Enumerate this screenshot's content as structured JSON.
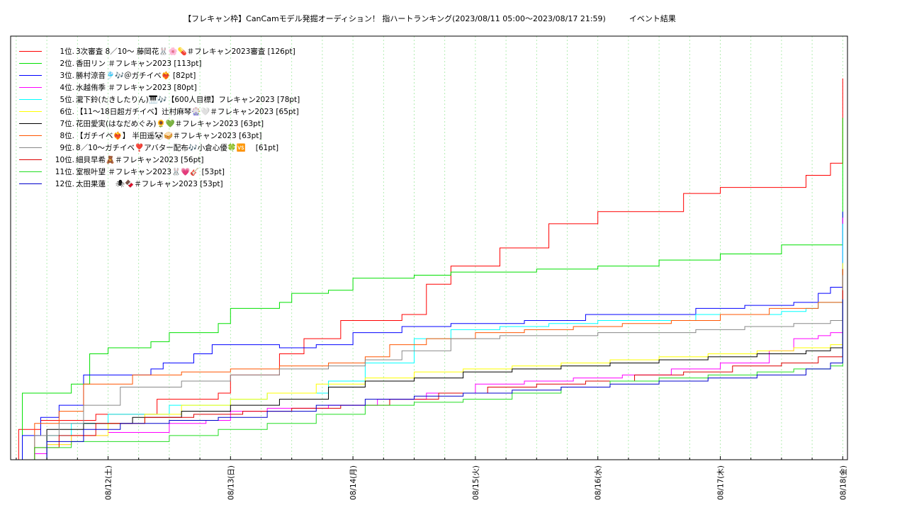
{
  "chart_data": {
    "type": "line",
    "title": "【フレキャン枠】CanCamモデル発掘オーディション！ 指ハートランキング(2023/08/11 05:00〜2023/08/17 21:59)　　　イベント結果",
    "xlabel": "",
    "ylabel": "",
    "x_tick_labels": [
      "08/12(土)",
      "08/13(日)",
      "08/14(月)",
      "08/15(火)",
      "08/16(水)",
      "08/17(木)",
      "08/18(金)"
    ],
    "x_range_days": [
      -0.8,
      6.0
    ],
    "ylim": [
      0,
      140
    ],
    "grid": true,
    "legend_position": "top-left",
    "series": [
      {
        "rank": "1位.",
        "name": "3次審査 8／10〜 藤岡花🐰🌸💊＃フレキャン2023審査 [126pt]",
        "color": "#ff0000",
        "points": [
          [
            -0.8,
            0
          ],
          [
            -0.73,
            10
          ],
          [
            -0.55,
            13
          ],
          [
            -0.3,
            13
          ],
          [
            -0.1,
            15
          ],
          [
            0.1,
            15
          ],
          [
            0.4,
            20
          ],
          [
            0.6,
            20
          ],
          [
            0.9,
            22
          ],
          [
            1.0,
            28
          ],
          [
            1.1,
            28
          ],
          [
            1.35,
            28
          ],
          [
            1.4,
            35
          ],
          [
            1.5,
            35
          ],
          [
            1.6,
            40
          ],
          [
            1.8,
            40
          ],
          [
            1.9,
            46
          ],
          [
            2.1,
            46
          ],
          [
            2.4,
            48
          ],
          [
            2.6,
            58
          ],
          [
            2.8,
            64
          ],
          [
            3.2,
            70
          ],
          [
            3.6,
            78
          ],
          [
            4.0,
            82
          ],
          [
            4.4,
            82
          ],
          [
            4.7,
            88
          ],
          [
            4.9,
            88
          ],
          [
            5.0,
            90
          ],
          [
            5.3,
            90
          ],
          [
            5.7,
            94
          ],
          [
            5.9,
            98
          ],
          [
            6.0,
            105
          ],
          [
            6.0,
            126
          ]
        ]
      },
      {
        "rank": "2位.",
        "name": "香田リン ＃フレキャン2023 [113pt]",
        "color": "#00e000",
        "points": [
          [
            -0.8,
            0
          ],
          [
            -0.7,
            22
          ],
          [
            -0.5,
            22
          ],
          [
            -0.3,
            25
          ],
          [
            -0.15,
            35
          ],
          [
            0,
            37
          ],
          [
            0.35,
            39
          ],
          [
            0.5,
            42
          ],
          [
            0.9,
            45
          ],
          [
            1.0,
            50
          ],
          [
            1.4,
            52
          ],
          [
            1.5,
            55
          ],
          [
            1.8,
            56
          ],
          [
            2.0,
            60
          ],
          [
            2.5,
            61
          ],
          [
            2.8,
            62
          ],
          [
            3.5,
            63
          ],
          [
            4.0,
            64
          ],
          [
            4.5,
            66
          ],
          [
            5.0,
            68
          ],
          [
            5.5,
            71
          ],
          [
            5.9,
            71
          ],
          [
            6.0,
            80
          ],
          [
            6.0,
            113
          ]
        ]
      },
      {
        "rank": "3位.",
        "name": "勝村涼音🎐🎶＠ガチイベ❤️‍🔥 [82pt]",
        "color": "#0000ff",
        "points": [
          [
            -0.8,
            0
          ],
          [
            -0.7,
            8
          ],
          [
            -0.55,
            14
          ],
          [
            -0.4,
            18
          ],
          [
            -0.2,
            28
          ],
          [
            0.2,
            28
          ],
          [
            0.35,
            30
          ],
          [
            0.45,
            32
          ],
          [
            0.7,
            35
          ],
          [
            0.85,
            38
          ],
          [
            1.2,
            38
          ],
          [
            1.4,
            37
          ],
          [
            1.7,
            38
          ],
          [
            2.0,
            42
          ],
          [
            2.4,
            44
          ],
          [
            2.8,
            45
          ],
          [
            3.4,
            46
          ],
          [
            3.9,
            48
          ],
          [
            4.4,
            48
          ],
          [
            4.8,
            50
          ],
          [
            5.2,
            51
          ],
          [
            5.6,
            52
          ],
          [
            5.8,
            55
          ],
          [
            5.9,
            57
          ],
          [
            6.0,
            60
          ],
          [
            6.0,
            82
          ]
        ]
      },
      {
        "rank": "4位.",
        "name": "水越侑季 ＃フレキャン2023 [80pt]",
        "color": "#ff00ff",
        "points": [
          [
            -0.8,
            0
          ],
          [
            -0.6,
            2
          ],
          [
            -0.5,
            5
          ],
          [
            -0.3,
            8
          ],
          [
            0,
            9
          ],
          [
            0.5,
            12
          ],
          [
            0.8,
            13
          ],
          [
            1.0,
            16
          ],
          [
            1.3,
            17
          ],
          [
            1.8,
            18
          ],
          [
            2.2,
            20
          ],
          [
            2.6,
            22
          ],
          [
            3.0,
            25
          ],
          [
            3.4,
            26
          ],
          [
            3.8,
            27
          ],
          [
            4.2,
            28
          ],
          [
            4.6,
            30
          ],
          [
            5.0,
            32
          ],
          [
            5.4,
            36
          ],
          [
            5.6,
            40
          ],
          [
            5.8,
            41
          ],
          [
            5.9,
            42
          ],
          [
            6.0,
            60
          ],
          [
            6.0,
            80
          ]
        ]
      },
      {
        "rank": "5位.",
        "name": "瀧下鈴(たきしたりん)🎹🎶【600人目標】フレキャン2023 [78pt]",
        "color": "#00ffff",
        "points": [
          [
            -0.8,
            0
          ],
          [
            -0.5,
            8
          ],
          [
            -0.3,
            12
          ],
          [
            0,
            15
          ],
          [
            0.5,
            18
          ],
          [
            1.0,
            20
          ],
          [
            1.3,
            22
          ],
          [
            1.8,
            26
          ],
          [
            2.1,
            32
          ],
          [
            2.5,
            40
          ],
          [
            2.8,
            43
          ],
          [
            3.2,
            44
          ],
          [
            3.6,
            45
          ],
          [
            4.0,
            46
          ],
          [
            4.4,
            46
          ],
          [
            4.8,
            48
          ],
          [
            5.2,
            48
          ],
          [
            5.5,
            49
          ],
          [
            5.7,
            50
          ],
          [
            5.8,
            52
          ],
          [
            6.0,
            55
          ],
          [
            6.0,
            78
          ]
        ]
      },
      {
        "rank": "6位.",
        "name": "【11〜18日超ガチイベ】辻村麻琴🎡🤍＃フレキャン2023 [65pt]",
        "color": "#ffff00",
        "points": [
          [
            -0.8,
            0
          ],
          [
            -0.5,
            5
          ],
          [
            -0.3,
            8
          ],
          [
            0,
            12
          ],
          [
            0.3,
            15
          ],
          [
            0.6,
            18
          ],
          [
            1.0,
            20
          ],
          [
            1.3,
            22
          ],
          [
            1.7,
            25
          ],
          [
            2.1,
            27
          ],
          [
            2.5,
            29
          ],
          [
            2.9,
            30
          ],
          [
            3.3,
            31
          ],
          [
            3.7,
            32
          ],
          [
            4.1,
            33
          ],
          [
            4.5,
            34
          ],
          [
            4.9,
            35
          ],
          [
            5.3,
            36
          ],
          [
            5.6,
            37
          ],
          [
            5.9,
            38
          ],
          [
            6.0,
            40
          ],
          [
            6.0,
            65
          ]
        ]
      },
      {
        "rank": "7位.",
        "name": "花田愛実(はなだめぐみ)🌻💚＃フレキャン2023 [63pt]",
        "color": "#000000",
        "points": [
          [
            -0.8,
            0
          ],
          [
            -0.5,
            10
          ],
          [
            -0.2,
            12
          ],
          [
            0.2,
            14
          ],
          [
            0.6,
            16
          ],
          [
            1.0,
            18
          ],
          [
            1.4,
            20
          ],
          [
            1.8,
            24
          ],
          [
            2.1,
            26
          ],
          [
            2.5,
            27
          ],
          [
            2.9,
            29
          ],
          [
            3.3,
            30
          ],
          [
            3.7,
            31
          ],
          [
            4.1,
            32
          ],
          [
            4.5,
            33
          ],
          [
            4.9,
            34
          ],
          [
            5.3,
            35
          ],
          [
            5.7,
            36
          ],
          [
            5.9,
            37
          ],
          [
            6.0,
            39
          ],
          [
            6.0,
            63
          ]
        ]
      },
      {
        "rank": "8位.",
        "name": "【ガチイベ❤️‍🔥】 半田遥🐼🥪＃フレキャン2023 [63pt]",
        "color": "#ff5500",
        "points": [
          [
            -0.8,
            0
          ],
          [
            -0.6,
            12
          ],
          [
            -0.4,
            16
          ],
          [
            -0.2,
            25
          ],
          [
            0.2,
            28
          ],
          [
            0.6,
            29
          ],
          [
            1.0,
            30
          ],
          [
            1.4,
            31
          ],
          [
            1.8,
            32
          ],
          [
            2.1,
            34
          ],
          [
            2.3,
            38
          ],
          [
            2.6,
            40
          ],
          [
            3.0,
            42
          ],
          [
            3.4,
            43
          ],
          [
            3.8,
            44
          ],
          [
            4.2,
            45
          ],
          [
            4.6,
            46
          ],
          [
            5.0,
            48
          ],
          [
            5.4,
            50
          ],
          [
            5.8,
            52
          ],
          [
            6.0,
            53
          ],
          [
            6.0,
            63
          ]
        ]
      },
      {
        "rank": "9位.",
        "name": "8／10〜ガチイベ❣️アバター配布🎶小倉心優🍀🆚　 [61pt]",
        "color": "#888888",
        "points": [
          [
            -0.8,
            0
          ],
          [
            -0.6,
            8
          ],
          [
            -0.4,
            12
          ],
          [
            -0.2,
            18
          ],
          [
            0.1,
            24
          ],
          [
            0.6,
            26
          ],
          [
            1.0,
            28
          ],
          [
            1.4,
            30
          ],
          [
            1.8,
            31
          ],
          [
            2.1,
            33
          ],
          [
            2.4,
            36
          ],
          [
            2.8,
            40
          ],
          [
            3.2,
            41
          ],
          [
            3.6,
            41
          ],
          [
            4.0,
            42
          ],
          [
            4.4,
            42
          ],
          [
            4.8,
            43
          ],
          [
            5.2,
            44
          ],
          [
            5.6,
            45
          ],
          [
            5.9,
            46
          ],
          [
            6.0,
            47
          ],
          [
            6.0,
            61
          ]
        ]
      },
      {
        "rank": "10位.",
        "name": "細貝早希🧸＃フレキャン2023 [56pt]",
        "color": "#dd0000",
        "points": [
          [
            -0.8,
            0
          ],
          [
            -0.6,
            4
          ],
          [
            -0.4,
            8
          ],
          [
            -0.1,
            12
          ],
          [
            0.3,
            14
          ],
          [
            0.7,
            15
          ],
          [
            1.1,
            16
          ],
          [
            1.5,
            17
          ],
          [
            1.9,
            18
          ],
          [
            2.3,
            20
          ],
          [
            2.7,
            22
          ],
          [
            3.1,
            24
          ],
          [
            3.5,
            25
          ],
          [
            3.9,
            26
          ],
          [
            4.3,
            28
          ],
          [
            4.7,
            29
          ],
          [
            5.1,
            31
          ],
          [
            5.5,
            32
          ],
          [
            5.8,
            34
          ],
          [
            6.0,
            36
          ],
          [
            6.0,
            56
          ]
        ]
      },
      {
        "rank": "11位.",
        "name": "室根叶望 ＃フレキャン2023🐰💗🎸 [53pt]",
        "color": "#22dd22",
        "points": [
          [
            -0.8,
            0
          ],
          [
            -0.6,
            4
          ],
          [
            -0.3,
            6
          ],
          [
            0,
            6
          ],
          [
            0.5,
            8
          ],
          [
            0.9,
            10
          ],
          [
            1.3,
            12
          ],
          [
            1.7,
            15
          ],
          [
            2.1,
            18
          ],
          [
            2.5,
            19
          ],
          [
            2.9,
            20
          ],
          [
            3.3,
            22
          ],
          [
            3.7,
            24
          ],
          [
            4.1,
            26
          ],
          [
            4.5,
            27
          ],
          [
            4.9,
            28
          ],
          [
            5.3,
            29
          ],
          [
            5.6,
            30
          ],
          [
            5.9,
            31
          ],
          [
            6.0,
            32
          ],
          [
            6.0,
            53
          ]
        ]
      },
      {
        "rank": "12位.",
        "name": "太田果蓮　 🕷🍫＃フレキャン2023 [53pt]",
        "color": "#0000cc",
        "points": [
          [
            -0.8,
            0
          ],
          [
            -0.5,
            6
          ],
          [
            -0.2,
            10
          ],
          [
            0.1,
            12
          ],
          [
            0.5,
            13
          ],
          [
            0.9,
            14
          ],
          [
            1.3,
            16
          ],
          [
            1.7,
            18
          ],
          [
            2.1,
            20
          ],
          [
            2.5,
            21
          ],
          [
            2.9,
            22
          ],
          [
            3.3,
            23
          ],
          [
            3.7,
            24
          ],
          [
            4.1,
            25
          ],
          [
            4.5,
            26
          ],
          [
            4.9,
            27
          ],
          [
            5.3,
            28
          ],
          [
            5.7,
            30
          ],
          [
            5.9,
            32
          ],
          [
            6.0,
            35
          ],
          [
            6.0,
            53
          ]
        ]
      }
    ]
  }
}
